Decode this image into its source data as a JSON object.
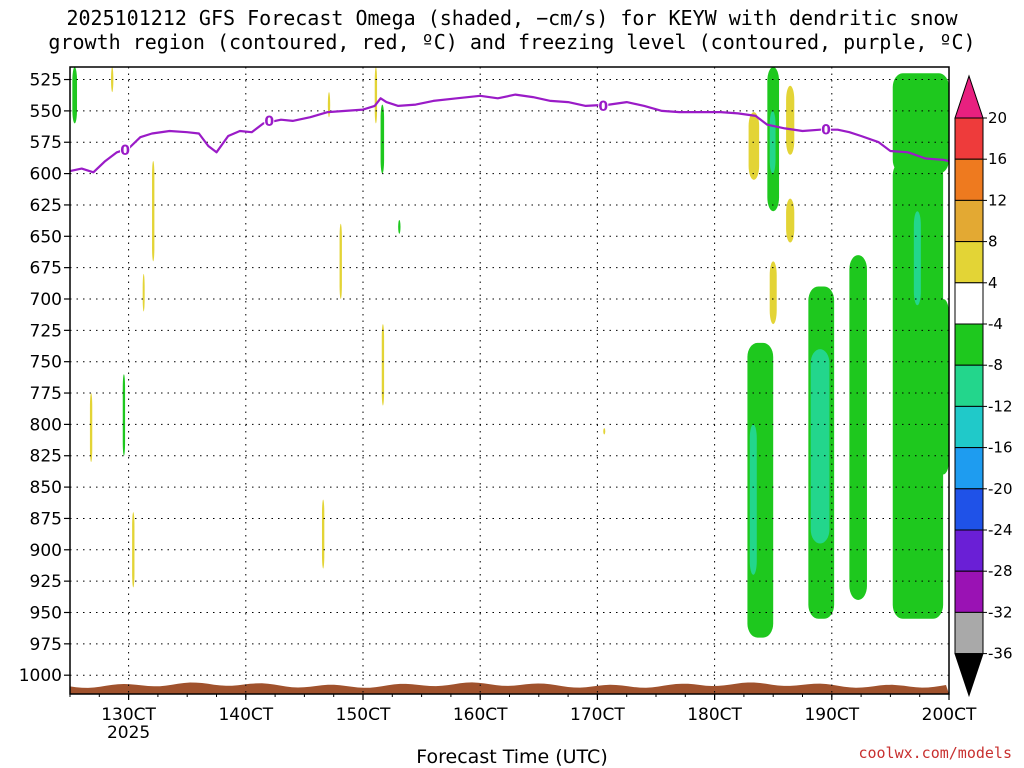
{
  "title_line1": "2025101212 GFS Forecast Omega (shaded, −cm/s) for KEYW with dendritic snow",
  "title_line2": "growth region (contoured, red, ºC) and freezing level (contoured, purple, ºC)",
  "footer": "coolwx.com/models",
  "chart_data": {
    "type": "heatmap",
    "title": "2025101212 GFS Forecast Omega (shaded, −cm/s) for KEYW with dendritic snow growth region (contoured, red, ºC) and freezing level (contoured, purple, ºC)",
    "xlabel": "Forecast Time (UTC)",
    "ylabel": "",
    "x_ticks": [
      {
        "label": "130CT",
        "day": 13
      },
      {
        "label": "140CT",
        "day": 14
      },
      {
        "label": "150CT",
        "day": 15
      },
      {
        "label": "160CT",
        "day": 16
      },
      {
        "label": "170CT",
        "day": 17
      },
      {
        "label": "180CT",
        "day": 18
      },
      {
        "label": "190CT",
        "day": 19
      },
      {
        "label": "200CT",
        "day": 20
      }
    ],
    "x_sublabel": "2025",
    "xlim": [
      12.5,
      20.0
    ],
    "y_ticks": [
      525,
      550,
      575,
      600,
      625,
      650,
      675,
      700,
      725,
      750,
      775,
      800,
      825,
      850,
      875,
      900,
      925,
      950,
      975,
      1000
    ],
    "ylim": [
      515,
      1015
    ],
    "grid": true,
    "colorbar": {
      "labels": [
        "20",
        "16",
        "12",
        "8",
        "4",
        "-4",
        "-8",
        "-12",
        "-16",
        "-20",
        "-24",
        "-28",
        "-32",
        "-36"
      ],
      "colors": [
        "#e8207f",
        "#ee3b3b",
        "#ee7a1f",
        "#e3a933",
        "#e3d436",
        "#ffffff",
        "#1ec81e",
        "#23d68c",
        "#20c9c9",
        "#1e9cf0",
        "#1f52e8",
        "#6a1fd6",
        "#9a12b4",
        "#a9a9a9",
        "#000000"
      ]
    },
    "freezing_level": {
      "label": "0",
      "color": "#9a1bc7",
      "points": [
        [
          12.5,
          598
        ],
        [
          12.6,
          596
        ],
        [
          12.7,
          599
        ],
        [
          12.8,
          590
        ],
        [
          12.9,
          583
        ],
        [
          13.0,
          580
        ],
        [
          13.1,
          571
        ],
        [
          13.2,
          568
        ],
        [
          13.35,
          566
        ],
        [
          13.5,
          567
        ],
        [
          13.6,
          568
        ],
        [
          13.68,
          578
        ],
        [
          13.75,
          583
        ],
        [
          13.85,
          570
        ],
        [
          13.95,
          566
        ],
        [
          14.05,
          567
        ],
        [
          14.15,
          560
        ],
        [
          14.3,
          557
        ],
        [
          14.4,
          558
        ],
        [
          14.55,
          555
        ],
        [
          14.7,
          551
        ],
        [
          14.85,
          550
        ],
        [
          15.0,
          549
        ],
        [
          15.1,
          546
        ],
        [
          15.15,
          540
        ],
        [
          15.2,
          543
        ],
        [
          15.3,
          546
        ],
        [
          15.45,
          545
        ],
        [
          15.6,
          542
        ],
        [
          15.8,
          540
        ],
        [
          16.0,
          538
        ],
        [
          16.15,
          540
        ],
        [
          16.3,
          537
        ],
        [
          16.45,
          539
        ],
        [
          16.6,
          542
        ],
        [
          16.75,
          543
        ],
        [
          16.9,
          546
        ],
        [
          17.1,
          545
        ],
        [
          17.25,
          543
        ],
        [
          17.4,
          546
        ],
        [
          17.55,
          550
        ],
        [
          17.7,
          551
        ],
        [
          17.9,
          551
        ],
        [
          18.05,
          551
        ],
        [
          18.2,
          552
        ],
        [
          18.35,
          554
        ],
        [
          18.45,
          561
        ],
        [
          18.6,
          564
        ],
        [
          18.75,
          566
        ],
        [
          18.9,
          565
        ],
        [
          19.05,
          565
        ],
        [
          19.15,
          567
        ],
        [
          19.25,
          570
        ],
        [
          19.4,
          575
        ],
        [
          19.5,
          582
        ],
        [
          19.65,
          583
        ],
        [
          19.8,
          588
        ],
        [
          19.95,
          589
        ],
        [
          20.0,
          590
        ]
      ]
    },
    "surface": {
      "color": "#a0522d",
      "pressure": 1008
    },
    "shaded_regions": [
      {
        "color": "#1ec81e",
        "x": 12.52,
        "x2": 12.56,
        "p1": 515,
        "p2": 560
      },
      {
        "color": "#1ec81e",
        "x": 19.52,
        "x2": 20.0,
        "p1": 520,
        "p2": 600
      },
      {
        "color": "#1ec81e",
        "x": 19.52,
        "x2": 19.95,
        "p1": 590,
        "p2": 955
      },
      {
        "color": "#1ec81e",
        "x": 19.9,
        "x2": 20.0,
        "p1": 700,
        "p2": 840
      },
      {
        "color": "#23d68c",
        "x": 19.7,
        "x2": 19.76,
        "p1": 630,
        "p2": 705
      },
      {
        "color": "#1ec81e",
        "x": 19.15,
        "x2": 19.3,
        "p1": 665,
        "p2": 940
      },
      {
        "color": "#1ec81e",
        "x": 18.8,
        "x2": 19.02,
        "p1": 690,
        "p2": 955
      },
      {
        "color": "#23d68c",
        "x": 18.82,
        "x2": 18.98,
        "p1": 740,
        "p2": 895
      },
      {
        "color": "#1ec81e",
        "x": 18.28,
        "x2": 18.5,
        "p1": 735,
        "p2": 970
      },
      {
        "color": "#23d68c",
        "x": 18.3,
        "x2": 18.36,
        "p1": 800,
        "p2": 920
      },
      {
        "color": "#1ec81e",
        "x": 18.45,
        "x2": 18.55,
        "p1": 515,
        "p2": 630
      },
      {
        "color": "#23d68c",
        "x": 18.47,
        "x2": 18.52,
        "p1": 550,
        "p2": 600
      },
      {
        "color": "#e3d436",
        "x": 18.29,
        "x2": 18.38,
        "p1": 551,
        "p2": 605
      },
      {
        "color": "#e3d436",
        "x": 18.61,
        "x2": 18.68,
        "p1": 530,
        "p2": 585
      },
      {
        "color": "#e3d436",
        "x": 18.61,
        "x2": 18.68,
        "p1": 620,
        "p2": 655
      },
      {
        "color": "#e3d436",
        "x": 18.47,
        "x2": 18.53,
        "p1": 670,
        "p2": 720
      },
      {
        "color": "#e3d436",
        "x": 13.2,
        "x2": 13.22,
        "p1": 590,
        "p2": 670
      },
      {
        "color": "#e3d436",
        "x": 12.85,
        "x2": 12.87,
        "p1": 515,
        "p2": 535
      },
      {
        "color": "#e3d436",
        "x": 14.8,
        "x2": 14.82,
        "p1": 640,
        "p2": 700
      },
      {
        "color": "#e3d436",
        "x": 14.65,
        "x2": 14.67,
        "p1": 860,
        "p2": 915
      },
      {
        "color": "#e3d436",
        "x": 12.67,
        "x2": 12.69,
        "p1": 775,
        "p2": 830
      },
      {
        "color": "#e3d436",
        "x": 13.03,
        "x2": 13.05,
        "p1": 870,
        "p2": 930
      },
      {
        "color": "#e3d436",
        "x": 13.12,
        "x2": 13.13,
        "p1": 680,
        "p2": 710
      },
      {
        "color": "#e3d436",
        "x": 15.1,
        "x2": 15.12,
        "p1": 515,
        "p2": 560
      },
      {
        "color": "#e3d436",
        "x": 14.7,
        "x2": 14.72,
        "p1": 535,
        "p2": 555
      },
      {
        "color": "#1ec81e",
        "x": 15.15,
        "x2": 15.18,
        "p1": 545,
        "p2": 600
      },
      {
        "color": "#1ec81e",
        "x": 12.95,
        "x2": 12.97,
        "p1": 760,
        "p2": 825
      },
      {
        "color": "#1ec81e",
        "x": 15.3,
        "x2": 15.32,
        "p1": 637,
        "p2": 648
      },
      {
        "color": "#e3d436",
        "x": 15.16,
        "x2": 15.18,
        "p1": 720,
        "p2": 785
      },
      {
        "color": "#e3d436",
        "x": 17.05,
        "x2": 17.06,
        "p1": 803,
        "p2": 808
      }
    ]
  }
}
